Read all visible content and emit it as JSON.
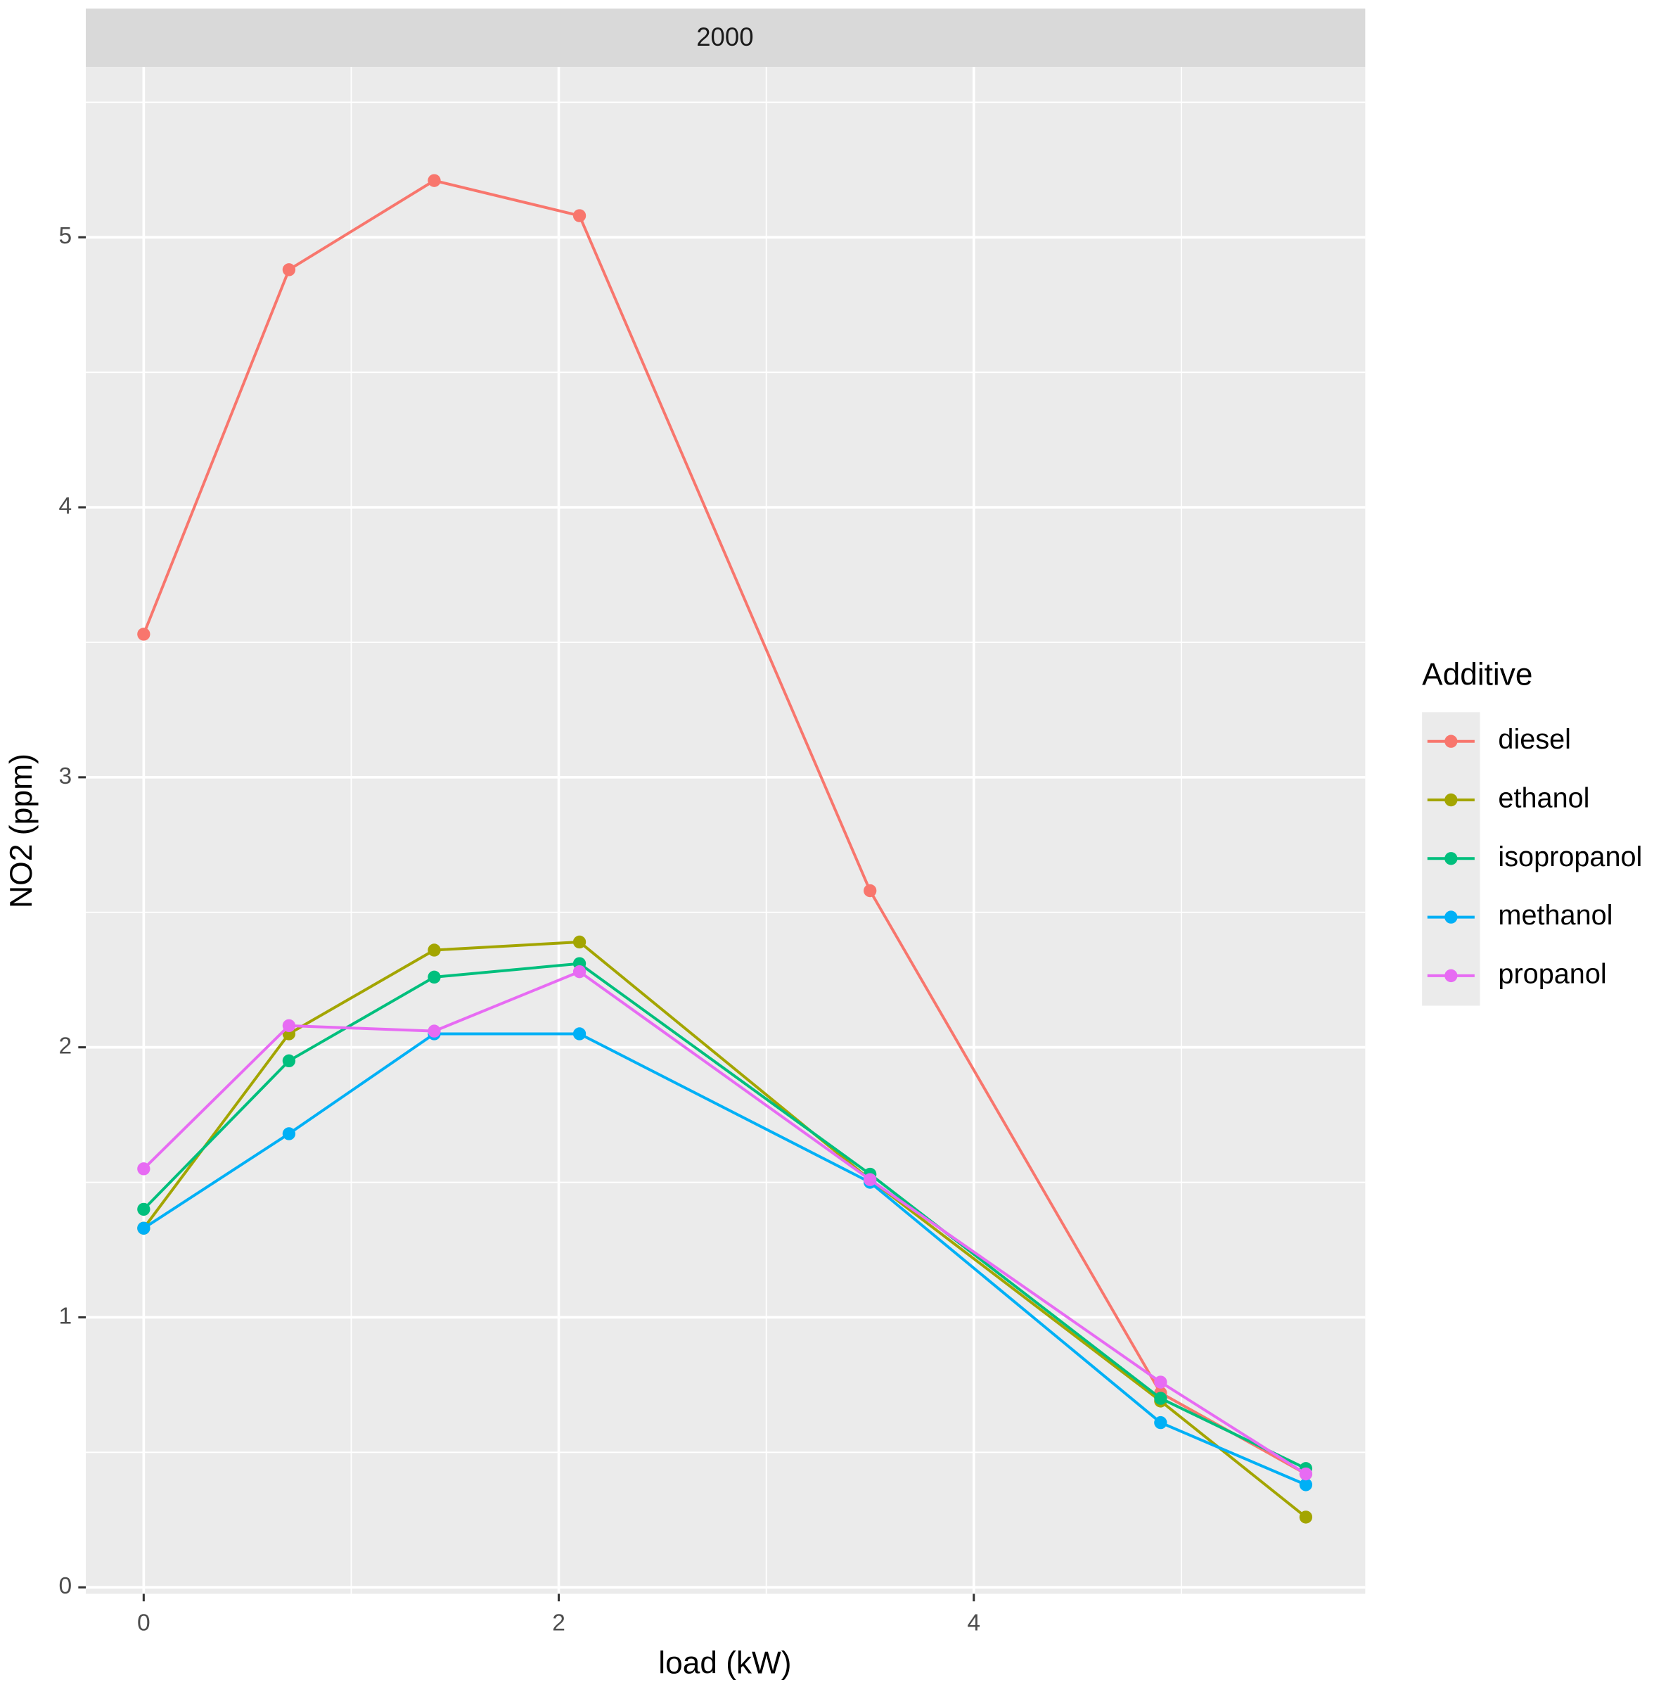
{
  "chart_data": {
    "type": "line",
    "strip": "2000",
    "x_label": "load (kW)",
    "y_label": "NO2 (ppm)",
    "legend_title": "Additive",
    "legend_position": "right",
    "x": [
      0,
      0.7,
      1.4,
      2.1,
      3.5,
      4.9,
      5.6
    ],
    "series": [
      {
        "name": "diesel",
        "color": "#f8766d",
        "values": [
          3.53,
          4.88,
          5.21,
          5.08,
          2.58,
          0.72,
          0.42
        ]
      },
      {
        "name": "ethanol",
        "color": "#a3a500",
        "values": [
          1.33,
          2.05,
          2.36,
          2.39,
          1.51,
          0.69,
          0.26
        ]
      },
      {
        "name": "isopropanol",
        "color": "#00bf7d",
        "values": [
          1.4,
          1.95,
          2.26,
          2.31,
          1.53,
          0.7,
          0.44
        ]
      },
      {
        "name": "methanol",
        "color": "#00b0f6",
        "values": [
          1.33,
          1.68,
          2.05,
          2.05,
          1.5,
          0.61,
          0.38
        ]
      },
      {
        "name": "propanol",
        "color": "#e76bf3",
        "values": [
          1.55,
          2.08,
          2.06,
          2.28,
          1.51,
          0.76,
          0.42
        ]
      }
    ],
    "xlim": [
      -0.279,
      5.886
    ],
    "xticks": [
      0,
      2,
      4
    ],
    "ylim": [
      -0.024,
      5.631
    ],
    "yticks": [
      0,
      1,
      2,
      3,
      4,
      5
    ],
    "grid": true
  }
}
